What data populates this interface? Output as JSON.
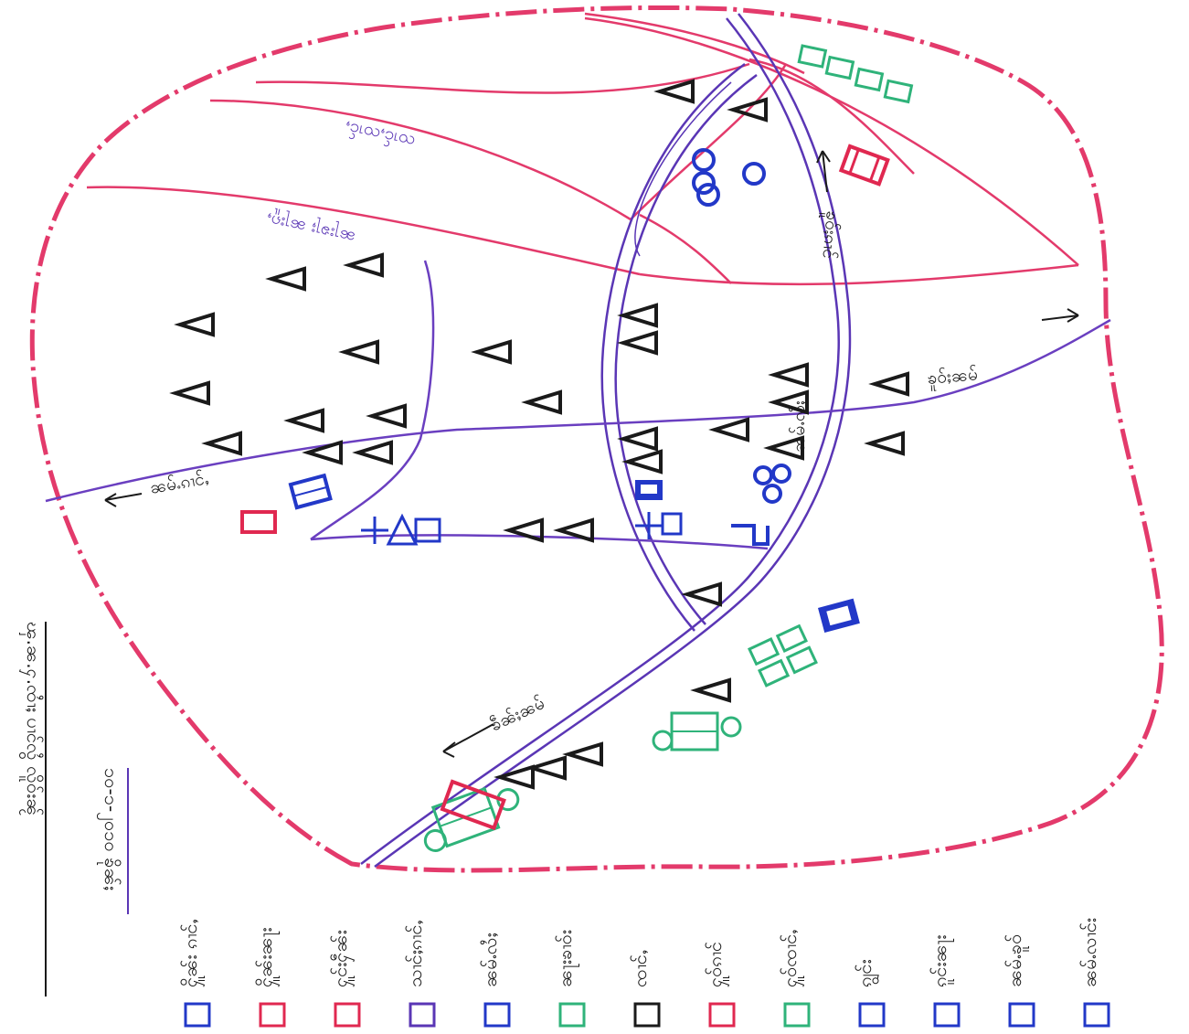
{
  "colors": {
    "boundary": "#e33a6b",
    "road": "#5a36b5",
    "stream": "#6a3fc0",
    "building_red": "#e02850",
    "building_blue": "#2238c8",
    "green": "#2fb37a",
    "triangle": "#1a1a1a",
    "paper": "#ffffff"
  },
  "icons": [
    "triangle-icon",
    "house-icon",
    "shop-icon",
    "school-icon",
    "school-bldg-icon",
    "field-plot-icon",
    "bell-tower-icon",
    "pagoda-icon",
    "temple-icon",
    "well-icon",
    "monastery-icon",
    "cart-icon"
  ],
  "header": {
    "title": "ၾ.ၼ.ႁ.ၸၢႆႈ ပၢင်လွႆ လိူဝ်းၼႂ်",
    "date": "၁၀-၁-၂၀၁၀ ၶိုၼ်ႈ"
  },
  "map": {
    "road_labels": [
      "ၶဵၼ်ႈၼမ်",
      "ၶူဝ်ႈၵၢင်",
      "ၶူဝ်ႈၼမ်"
    ],
    "field_labels": [
      "ၸၢင်ႇၸၢင်ႇ",
      "ၼႃးၶႃႈ ၼႃးၵူႇ"
    ],
    "stream_labels": [
      "ၼမ်ႉၵၢင်ႇ",
      "ၼမ်ႉလႆႈ"
    ],
    "arrow_labels": [
      "ၵိူင်ႇ",
      "ၵိူင်ႇ"
    ]
  },
  "legend": {
    "items": [
      {
        "icon": "house-icon",
        "label": "ႁိူၼ်း ၵၢင်ႇ",
        "color": "#2238c8"
      },
      {
        "icon": "shop-icon",
        "label": "ႁိူၼ်းၼႃး",
        "color": "#e02850"
      },
      {
        "icon": "school-icon",
        "label": "ႁူင်းႁဵၼ်း",
        "color": "#e02850"
      },
      {
        "icon": "road-icon",
        "label": "သၢင်ႈၵၢင်ႇ",
        "color": "#5a36b5"
      },
      {
        "icon": "river-icon",
        "label": "ၼမ်ႉလႆႈ",
        "color": "#2238c8"
      },
      {
        "icon": "field-plot-icon",
        "label": "ၼႃးၶၢဝ်း",
        "color": "#2fb37a"
      },
      {
        "icon": "triangle-icon",
        "label": "ၸၢင်ႇ",
        "color": "#1a1a1a"
      },
      {
        "icon": "monastery-icon",
        "label": "ႁူဝ်ၵၢင်",
        "color": "#e02850"
      },
      {
        "icon": "cart-icon",
        "label": "ႁူဝ်ၸၢင်ႇ",
        "color": "#2fb37a"
      },
      {
        "icon": "temple-icon",
        "label": "ၵျွင်း",
        "color": "#2238c8"
      },
      {
        "icon": "pagoda-icon",
        "label": "ၵူင်းၼႃး",
        "color": "#2238c8"
      },
      {
        "icon": "well-icon",
        "label": "ၼမ်ႉၶူဝ်",
        "color": "#2238c8"
      },
      {
        "icon": "bell-tower-icon",
        "label": "ၼမ်ႉလၢင်း",
        "color": "#2238c8"
      }
    ]
  }
}
